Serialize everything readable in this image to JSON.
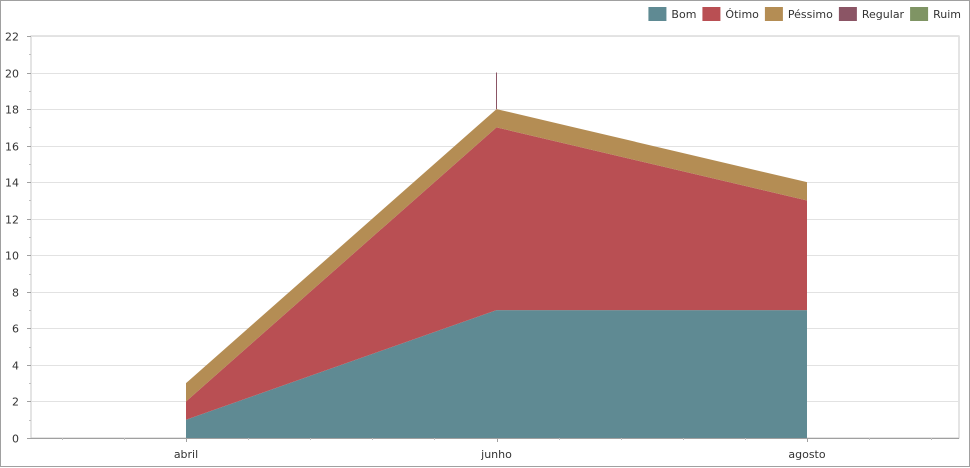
{
  "chart_data": {
    "type": "area",
    "stacked": true,
    "categories": [
      "abril",
      "junho",
      "agosto"
    ],
    "series": [
      {
        "name": "Bom",
        "color": "#5f8a93",
        "values": [
          1,
          7,
          7
        ]
      },
      {
        "name": "Ótimo",
        "color": "#b94f53",
        "values": [
          1,
          10,
          6
        ]
      },
      {
        "name": "Péssimo",
        "color": "#b48d54",
        "values": [
          1,
          1,
          1
        ]
      },
      {
        "name": "Regular",
        "color": "#8b5565",
        "values": [
          0,
          0,
          0
        ]
      },
      {
        "name": "Ruim",
        "color": "#7f9464",
        "values": [
          0,
          0,
          0
        ]
      }
    ],
    "ylim": [
      0,
      22
    ],
    "yticks": [
      0,
      2,
      4,
      6,
      8,
      10,
      12,
      14,
      16,
      18,
      20,
      22
    ],
    "grid": true,
    "legend_position": "top-right",
    "annotation_line": {
      "category": "junho",
      "from": 18,
      "to": 20,
      "color": "#8b5565"
    }
  }
}
